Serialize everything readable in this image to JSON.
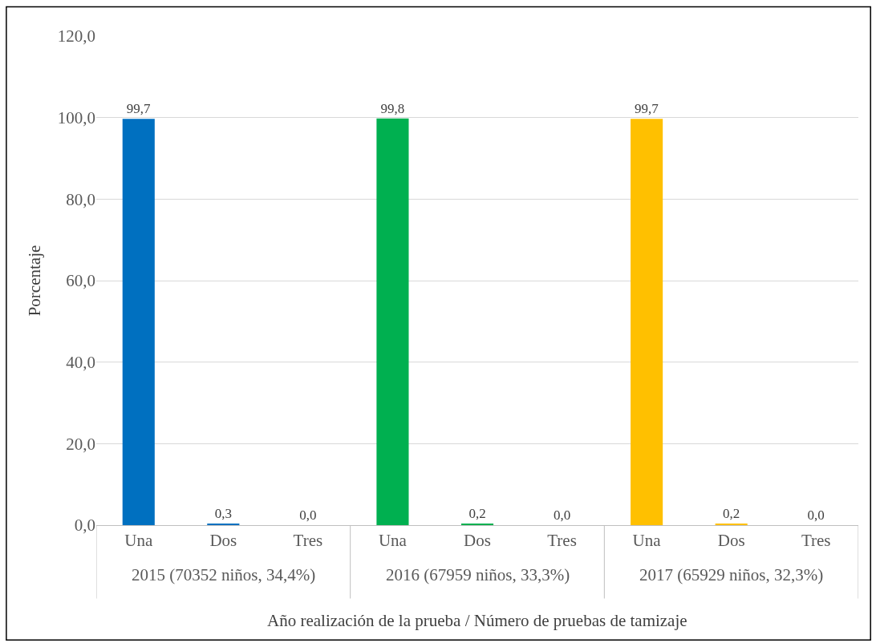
{
  "chart_data": {
    "type": "bar",
    "xlabel": "Año realización de la prueba / Número de pruebas de tamizaje",
    "ylabel": "Porcentaje",
    "categories": [
      "Una",
      "Dos",
      "Tres",
      "Una",
      "Dos",
      "Tres",
      "Una",
      "Dos",
      "Tres"
    ],
    "values": [
      99.7,
      0.3,
      0.0,
      99.8,
      0.2,
      0.0,
      99.7,
      0.2,
      0.0
    ],
    "value_labels": [
      "99,7",
      "0,3",
      "0,0",
      "99,8",
      "0,2",
      "0,0",
      "99,7",
      "0,2",
      "0,0"
    ],
    "colors": [
      "#0070c0",
      "#0070c0",
      "#0070c0",
      "#00b050",
      "#00b050",
      "#00b050",
      "#ffc000",
      "#ffc000",
      "#ffc000"
    ],
    "annotations": [
      "2015 (70352 niños, 34,4%)",
      "2016 (67959 niños, 33,3%)",
      "2017 (65929 niños, 32,3%)"
    ],
    "ylim": [
      0,
      120
    ],
    "yticks": [
      {
        "value": 0,
        "label": "0,0"
      },
      {
        "value": 20,
        "label": "20,0"
      },
      {
        "value": 40,
        "label": "40,0"
      },
      {
        "value": 60,
        "label": "60,0"
      },
      {
        "value": 80,
        "label": "80,0"
      },
      {
        "value": 100,
        "label": "100,0"
      },
      {
        "value": 120,
        "label": "120,0"
      }
    ],
    "grid": "y"
  }
}
